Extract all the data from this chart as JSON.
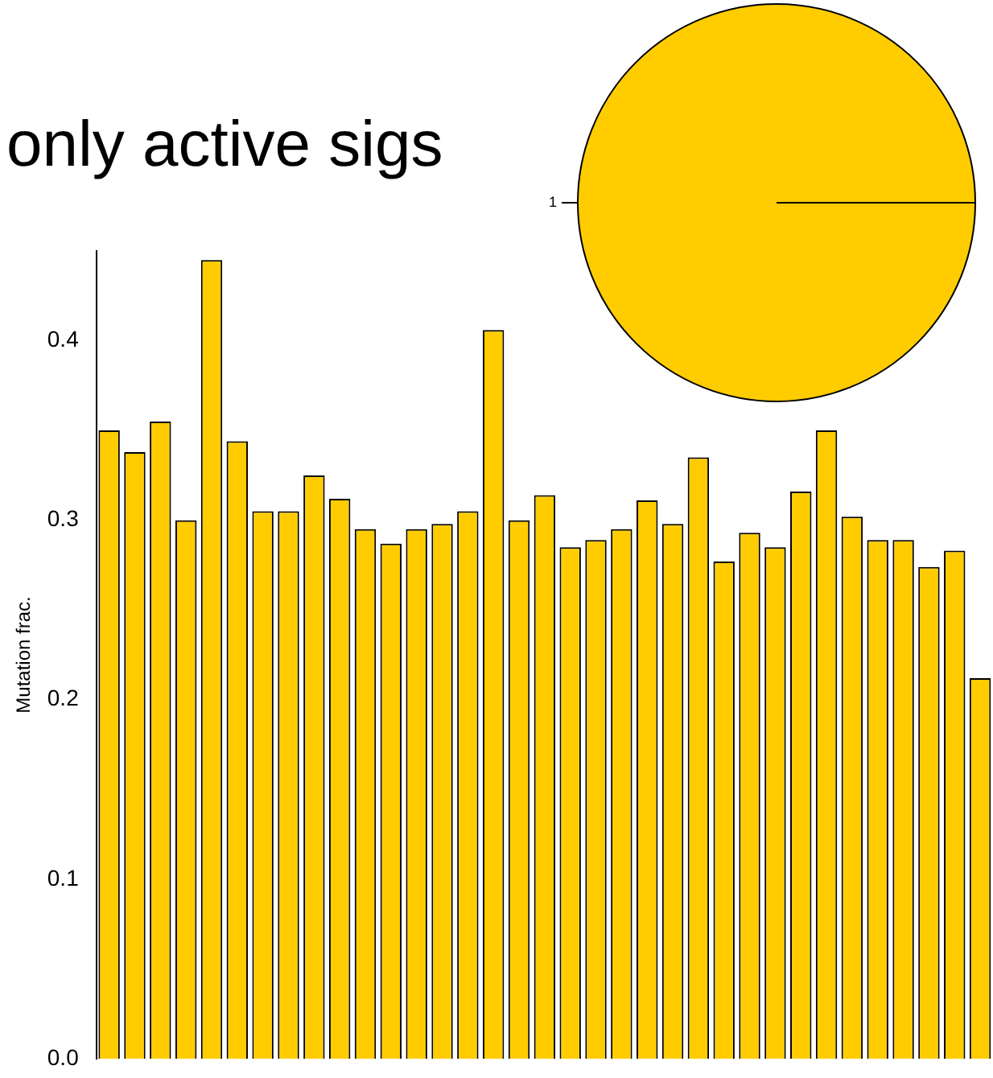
{
  "chart_data": [
    {
      "type": "bar",
      "title": "only active sigs",
      "ylabel": "Mutation frac.",
      "categories": [
        null,
        null,
        null,
        null,
        null,
        null,
        null,
        null,
        null,
        null,
        null,
        null,
        null,
        null,
        null,
        null,
        null,
        null,
        null,
        null,
        null,
        null,
        null,
        null,
        null,
        null,
        null,
        null,
        null,
        null,
        null,
        null,
        null,
        null,
        null
      ],
      "values": [
        0.35,
        0.338,
        0.355,
        0.3,
        0.445,
        0.344,
        0.305,
        0.305,
        0.325,
        0.312,
        0.295,
        0.287,
        0.295,
        0.298,
        0.305,
        0.406,
        0.3,
        0.314,
        0.285,
        0.289,
        0.295,
        0.311,
        0.298,
        0.335,
        0.277,
        0.293,
        0.285,
        0.316,
        0.35,
        0.302,
        0.289,
        0.289,
        0.274,
        0.283,
        0.212
      ],
      "color": "#ffcc00",
      "ylim": [
        0,
        0.45
      ],
      "yticks": [
        {
          "value": 0,
          "label": "0.0"
        },
        0.1,
        0.2,
        0.3,
        0.4
      ],
      "tick_labels": "y",
      "grid": false,
      "legend": false
    },
    {
      "type": "pie",
      "categories": [
        "1"
      ],
      "values": [
        100
      ],
      "colors": [
        "#ffcc00"
      ],
      "legend": false
    }
  ]
}
